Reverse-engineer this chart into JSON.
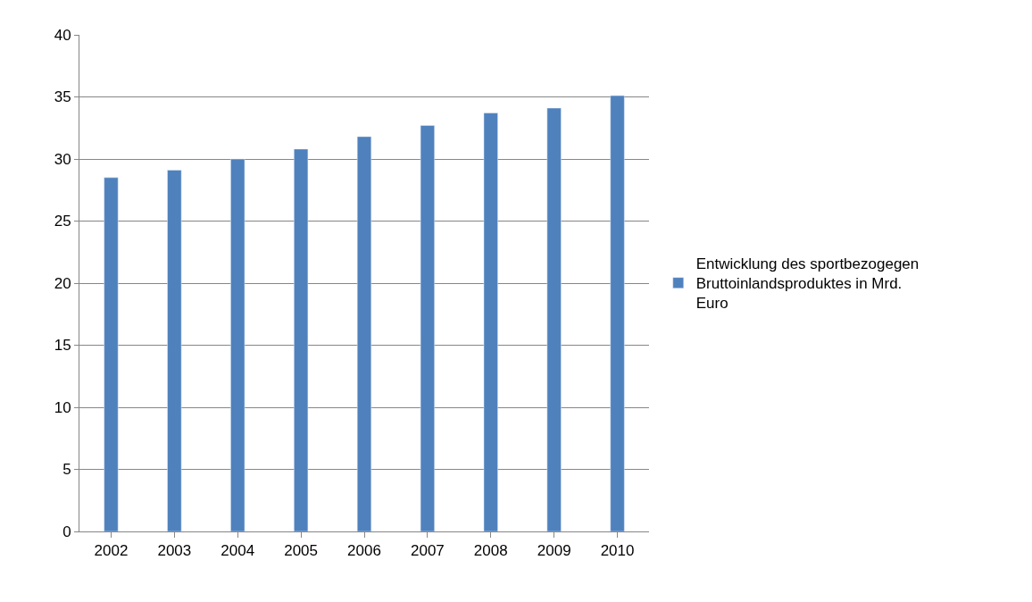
{
  "chart_data": {
    "type": "bar",
    "categories": [
      "2002",
      "2003",
      "2004",
      "2005",
      "2006",
      "2007",
      "2008",
      "2009",
      "2010"
    ],
    "series": [
      {
        "name": "Entwicklung des sportbezogegen Bruttoinlandsproduktes in Mrd. Euro",
        "color": "#4f81bd",
        "values": [
          28.5,
          29.1,
          30.0,
          30.8,
          31.8,
          32.7,
          33.7,
          34.1,
          35.1
        ]
      }
    ],
    "ylim": [
      0,
      40
    ],
    "yticks": [
      0,
      5,
      10,
      15,
      20,
      25,
      30,
      35,
      40
    ],
    "grid": "y",
    "legend": "right"
  }
}
